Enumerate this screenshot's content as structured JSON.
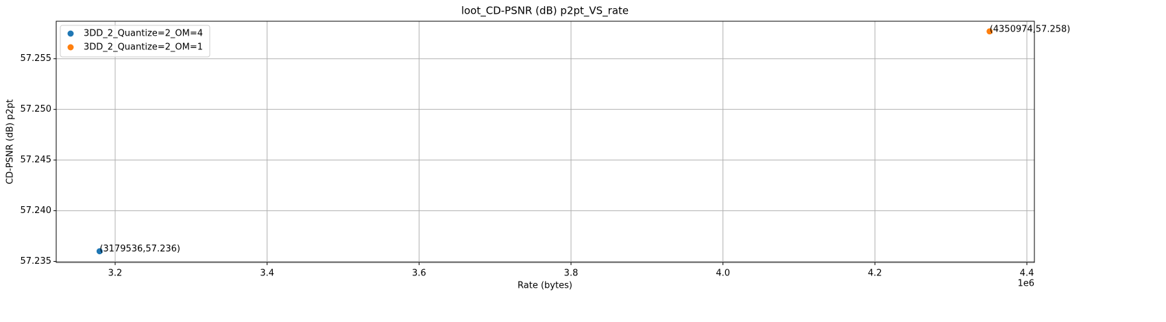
{
  "chart_data": {
    "type": "scatter",
    "title": "loot_CD-PSNR (dB) p2pt_VS_rate",
    "x_label": "Rate (bytes)",
    "y_label": "CD-PSNR (dB) p2pt",
    "x_offset_label": "1e6",
    "series": [
      {
        "name": "3DD_2_Quantize=2_OM=4",
        "color": "#1f77b4",
        "x": [
          3179536
        ],
        "values": [
          57.236
        ],
        "value_labels": [
          "(3179536,57.236)"
        ]
      },
      {
        "name": "3DD_2_Quantize=2_OM=1",
        "color": "#ff7f0e",
        "x": [
          4350974
        ],
        "values": [
          57.2577
        ],
        "value_labels": [
          "(4350974,57.258)"
        ]
      }
    ],
    "xlim": [
      3122400,
      4409900
    ],
    "xticks": [
      {
        "value": 3200000,
        "label": "3.2"
      },
      {
        "value": 3400000,
        "label": "3.4"
      },
      {
        "value": 3600000,
        "label": "3.6"
      },
      {
        "value": 3800000,
        "label": "3.8"
      },
      {
        "value": 4000000,
        "label": "4.0"
      },
      {
        "value": 4200000,
        "label": "4.2"
      },
      {
        "value": 4400000,
        "label": "4.4"
      }
    ],
    "ylim": [
      57.2349,
      57.2587
    ],
    "yticks": [
      57.235,
      {
        "value": 57.24,
        "label": "57.240"
      },
      57.245,
      {
        "value": 57.25,
        "label": "57.250"
      },
      57.255
    ],
    "grid": true,
    "legend": "upper-left"
  }
}
